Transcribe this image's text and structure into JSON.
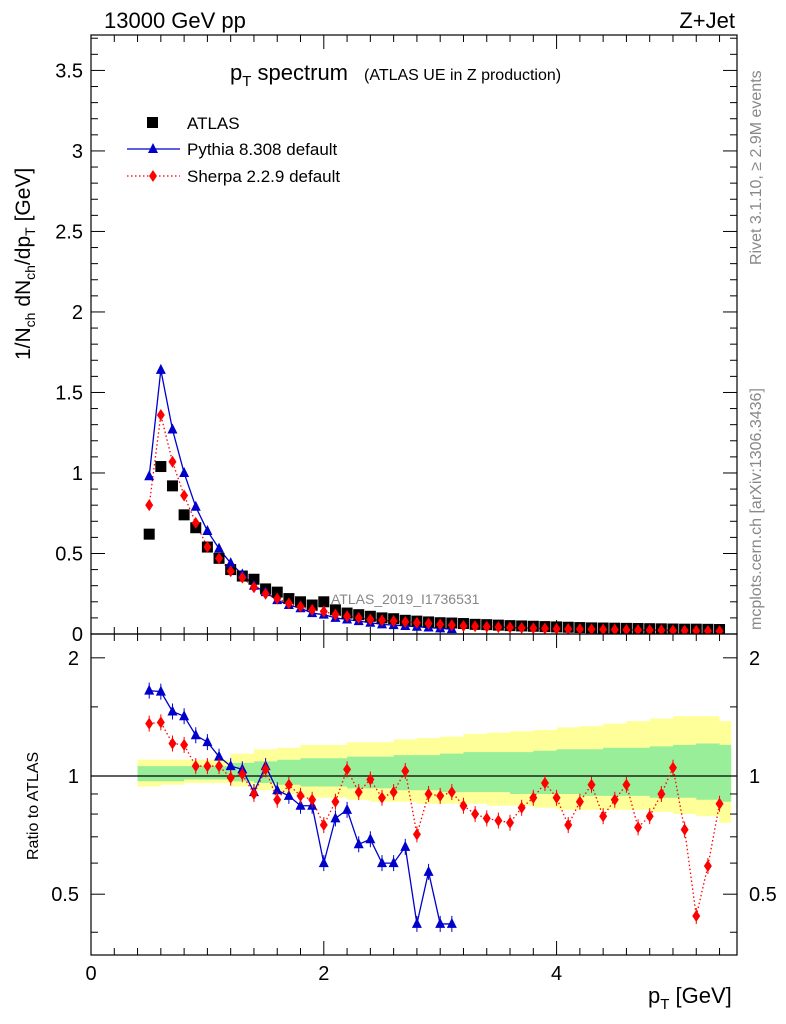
{
  "header": {
    "left": "13000 GeV pp",
    "right": "Z+Jet"
  },
  "side_labels": {
    "rivet": "Rivet 3.1.10, ≥ 2.9M events",
    "mcplots": "mcplots.cern.ch [arXiv:1306.3436]"
  },
  "chart_data": [
    {
      "type": "scatter",
      "title": "p_T spectrum",
      "title_main": "p",
      "title_sub": "T",
      "title_rest": " spectrum",
      "title_note": "(ATLAS UE in Z production)",
      "analysis_tag": "ATLAS_2019_I1736531",
      "xlabel": "p_T [GeV]",
      "ylabel": "1/N_ch dN_ch/dp_T [GeV]",
      "xlim": [
        0,
        5.55
      ],
      "ylim": [
        0,
        3.72
      ],
      "yticks": [
        0,
        0.5,
        1,
        1.5,
        2,
        2.5,
        3,
        3.5
      ],
      "ytick_labels": [
        "0",
        "0.5",
        "1",
        "1.5",
        "2",
        "2.5",
        "3",
        "3.5"
      ],
      "legend_position": "top-left",
      "series": [
        {
          "name": "ATLAS",
          "color": "#000000",
          "marker": "square",
          "x": [
            0.5,
            0.6,
            0.7,
            0.8,
            0.9,
            1.0,
            1.1,
            1.2,
            1.3,
            1.4,
            1.5,
            1.6,
            1.7,
            1.8,
            1.9,
            2.0,
            2.1,
            2.2,
            2.3,
            2.4,
            2.5,
            2.6,
            2.7,
            2.8,
            2.9,
            3.0,
            3.1,
            3.2,
            3.3,
            3.4,
            3.5,
            3.6,
            3.7,
            3.8,
            3.9,
            4.0,
            4.1,
            4.2,
            4.3,
            4.4,
            4.5,
            4.6,
            4.7,
            4.8,
            4.9,
            5.0,
            5.1,
            5.2,
            5.3,
            5.4
          ],
          "y": [
            0.62,
            1.04,
            0.92,
            0.74,
            0.66,
            0.54,
            0.47,
            0.4,
            0.36,
            0.34,
            0.28,
            0.26,
            0.22,
            0.2,
            0.18,
            0.2,
            0.15,
            0.13,
            0.12,
            0.11,
            0.1,
            0.095,
            0.085,
            0.08,
            0.075,
            0.07,
            0.068,
            0.065,
            0.06,
            0.058,
            0.055,
            0.052,
            0.05,
            0.048,
            0.046,
            0.044,
            0.042,
            0.04,
            0.038,
            0.037,
            0.036,
            0.035,
            0.034,
            0.033,
            0.032,
            0.031,
            0.03,
            0.03,
            0.029,
            0.028
          ]
        },
        {
          "name": "Pythia 8.308 default",
          "color": "#0000cc",
          "marker": "triangle",
          "line": "solid",
          "x": [
            0.5,
            0.6,
            0.7,
            0.8,
            0.9,
            1.0,
            1.1,
            1.2,
            1.3,
            1.4,
            1.5,
            1.6,
            1.7,
            1.8,
            1.9,
            2.0,
            2.1,
            2.2,
            2.3,
            2.4,
            2.5,
            2.6,
            2.7,
            2.8,
            2.9,
            3.0,
            3.1
          ],
          "y": [
            0.98,
            1.64,
            1.27,
            1.0,
            0.79,
            0.64,
            0.53,
            0.44,
            0.37,
            0.3,
            0.26,
            0.21,
            0.18,
            0.16,
            0.13,
            0.12,
            0.1,
            0.09,
            0.08,
            0.07,
            0.06,
            0.055,
            0.05,
            0.045,
            0.04,
            0.035,
            0.03
          ]
        },
        {
          "name": "Sherpa 2.2.9 default",
          "color": "#ff0000",
          "marker": "diamond",
          "line": "dotted",
          "x": [
            0.5,
            0.6,
            0.7,
            0.8,
            0.9,
            1.0,
            1.1,
            1.2,
            1.3,
            1.4,
            1.5,
            1.6,
            1.7,
            1.8,
            1.9,
            2.0,
            2.1,
            2.2,
            2.3,
            2.4,
            2.5,
            2.6,
            2.7,
            2.8,
            2.9,
            3.0,
            3.1,
            3.2,
            3.3,
            3.4,
            3.5,
            3.6,
            3.7,
            3.8,
            3.9,
            4.0,
            4.1,
            4.2,
            4.3,
            4.4,
            4.5,
            4.6,
            4.7,
            4.8,
            4.9,
            5.0,
            5.1,
            5.2,
            5.3,
            5.4
          ],
          "y": [
            0.8,
            1.36,
            1.07,
            0.86,
            0.69,
            0.54,
            0.47,
            0.39,
            0.35,
            0.29,
            0.25,
            0.22,
            0.19,
            0.17,
            0.15,
            0.14,
            0.12,
            0.11,
            0.1,
            0.09,
            0.085,
            0.08,
            0.075,
            0.07,
            0.065,
            0.06,
            0.055,
            0.05,
            0.048,
            0.045,
            0.043,
            0.04,
            0.038,
            0.036,
            0.034,
            0.032,
            0.031,
            0.03,
            0.029,
            0.028,
            0.027,
            0.026,
            0.025,
            0.024,
            0.023,
            0.022,
            0.021,
            0.02,
            0.019,
            0.018
          ]
        }
      ]
    },
    {
      "type": "scatter",
      "xlabel": "p_T [GeV]",
      "ylabel": "Ratio to ATLAS",
      "xlim": [
        0,
        5.55
      ],
      "ylim": [
        0.35,
        2.3
      ],
      "scale": "log",
      "yticks": [
        0.5,
        1,
        2
      ],
      "ytick_labels": [
        "0.5",
        "1",
        "2"
      ],
      "xticks": [
        0,
        2,
        4
      ],
      "xtick_labels": [
        "0",
        "2",
        "4"
      ],
      "band_x": [
        0.45,
        0.65,
        0.85,
        1.05,
        1.25,
        1.45,
        1.65,
        1.85,
        2.05,
        2.25,
        2.45,
        2.65,
        2.85,
        3.05,
        3.25,
        3.45,
        3.65,
        3.85,
        4.05,
        4.25,
        4.45,
        4.65,
        4.85,
        5.05,
        5.25,
        5.45
      ],
      "band_yellow_hi": [
        1.1,
        1.1,
        1.1,
        1.1,
        1.14,
        1.17,
        1.18,
        1.2,
        1.2,
        1.22,
        1.22,
        1.24,
        1.25,
        1.26,
        1.28,
        1.29,
        1.3,
        1.31,
        1.33,
        1.34,
        1.36,
        1.38,
        1.4,
        1.42,
        1.42,
        1.38
      ],
      "band_yellow_lo": [
        0.94,
        0.95,
        0.96,
        0.96,
        0.94,
        0.92,
        0.9,
        0.88,
        0.88,
        0.87,
        0.86,
        0.86,
        0.85,
        0.85,
        0.85,
        0.84,
        0.84,
        0.83,
        0.82,
        0.82,
        0.82,
        0.82,
        0.81,
        0.8,
        0.79,
        0.76
      ],
      "band_green_hi": [
        1.06,
        1.06,
        1.06,
        1.06,
        1.08,
        1.09,
        1.1,
        1.11,
        1.11,
        1.12,
        1.12,
        1.13,
        1.13,
        1.14,
        1.15,
        1.15,
        1.15,
        1.16,
        1.17,
        1.17,
        1.18,
        1.18,
        1.19,
        1.2,
        1.21,
        1.2
      ],
      "band_green_lo": [
        0.97,
        0.97,
        0.98,
        0.98,
        0.97,
        0.96,
        0.95,
        0.94,
        0.94,
        0.93,
        0.93,
        0.92,
        0.92,
        0.91,
        0.91,
        0.91,
        0.9,
        0.9,
        0.9,
        0.89,
        0.89,
        0.89,
        0.88,
        0.88,
        0.87,
        0.86
      ],
      "series": [
        {
          "name": "Pythia 8.308 default",
          "color": "#0000cc",
          "marker": "triangle",
          "line": "solid",
          "x": [
            0.5,
            0.6,
            0.7,
            0.8,
            0.9,
            1.0,
            1.1,
            1.2,
            1.3,
            1.4,
            1.5,
            1.6,
            1.7,
            1.8,
            1.9,
            2.0,
            2.1,
            2.2,
            2.3,
            2.4,
            2.5,
            2.6,
            2.7,
            2.8,
            2.9,
            3.0,
            3.1
          ],
          "y": [
            1.65,
            1.64,
            1.46,
            1.42,
            1.27,
            1.22,
            1.12,
            1.06,
            1.04,
            0.91,
            1.06,
            0.92,
            0.89,
            0.84,
            0.84,
            0.6,
            0.78,
            0.82,
            0.67,
            0.69,
            0.6,
            0.6,
            0.66,
            0.42,
            0.57,
            0.42,
            0.42
          ]
        },
        {
          "name": "Sherpa 2.2.9 default",
          "color": "#ff0000",
          "marker": "diamond",
          "line": "dotted",
          "x": [
            0.5,
            0.6,
            0.7,
            0.8,
            0.9,
            1.0,
            1.1,
            1.2,
            1.3,
            1.4,
            1.5,
            1.6,
            1.7,
            1.8,
            1.9,
            2.0,
            2.1,
            2.2,
            2.3,
            2.4,
            2.5,
            2.6,
            2.7,
            2.8,
            2.9,
            3.0,
            3.1,
            3.2,
            3.3,
            3.4,
            3.5,
            3.6,
            3.7,
            3.8,
            3.9,
            4.0,
            4.1,
            4.2,
            4.3,
            4.4,
            4.5,
            4.6,
            4.7,
            4.8,
            4.9,
            5.0,
            5.1,
            5.2,
            5.3,
            5.4
          ],
          "y": [
            1.36,
            1.37,
            1.21,
            1.2,
            1.06,
            1.06,
            1.06,
            0.99,
            1.01,
            0.9,
            1.04,
            0.87,
            0.95,
            0.89,
            0.87,
            0.75,
            0.86,
            1.04,
            0.91,
            0.98,
            0.88,
            0.91,
            1.03,
            0.71,
            0.9,
            0.89,
            0.91,
            0.84,
            0.8,
            0.78,
            0.77,
            0.76,
            0.83,
            0.88,
            0.96,
            0.88,
            0.75,
            0.86,
            0.95,
            0.79,
            0.87,
            0.95,
            0.74,
            0.79,
            0.9,
            1.05,
            0.73,
            0.44,
            0.59,
            0.85
          ]
        }
      ]
    }
  ]
}
